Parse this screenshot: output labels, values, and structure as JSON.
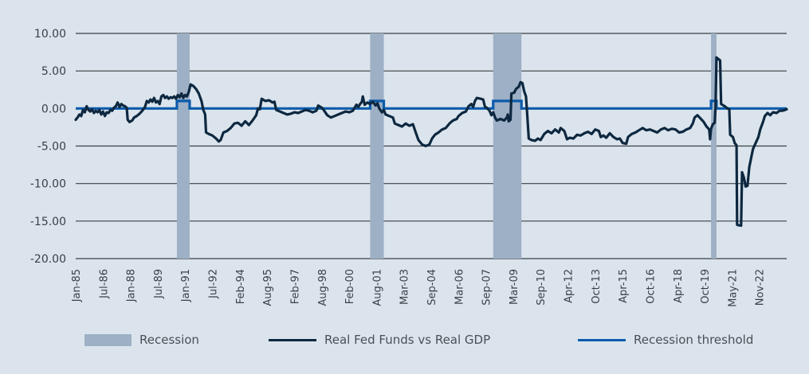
{
  "chart_data": {
    "type": "line",
    "title": "",
    "xlabel": "",
    "ylabel": "",
    "ylim": [
      -20,
      10
    ],
    "yticks": [
      "10.00",
      "5.00",
      "0.00",
      "-5.00",
      "-10.00",
      "-15.00",
      "-20.00"
    ],
    "ytick_values": [
      10,
      5,
      0,
      -5,
      -10,
      -15,
      -20
    ],
    "x_range_years": [
      1985.0,
      2024.0
    ],
    "xtick_labels": [
      "Jan-85",
      "Jul-86",
      "Jan-88",
      "Jul-89",
      "Jan-91",
      "Jul-92",
      "Feb-94",
      "Aug-95",
      "Feb-97",
      "Aug-98",
      "Feb-00",
      "Aug-01",
      "Mar-03",
      "Sep-04",
      "Mar-06",
      "Sep-07",
      "Mar-09",
      "Sep-10",
      "Apr-12",
      "Oct-13",
      "Apr-15",
      "Oct-16",
      "Apr-18",
      "Oct-19",
      "May-21",
      "Nov-22"
    ],
    "grid": "horizontal",
    "legend_position": "bottom",
    "colors": {
      "background": "#dbe4ec",
      "recession": "#9eb0c5",
      "series": "#0d2840",
      "threshold": "#0a5bab",
      "grid": "#3a3f45"
    },
    "recessions": [
      {
        "start": 1990.55,
        "end": 1991.25
      },
      {
        "start": 2001.15,
        "end": 2001.9
      },
      {
        "start": 2007.9,
        "end": 2009.45
      },
      {
        "start": 2019.85,
        "end": 2020.15
      }
    ],
    "series": [
      {
        "name": "Real Fed Funds vs Real GDP",
        "points": [
          [
            1985.0,
            -1.5
          ],
          [
            1985.1,
            -1.2
          ],
          [
            1985.2,
            -0.8
          ],
          [
            1985.3,
            -1.0
          ],
          [
            1985.4,
            -0.2
          ],
          [
            1985.5,
            -0.5
          ],
          [
            1985.6,
            0.3
          ],
          [
            1985.7,
            -0.2
          ],
          [
            1985.8,
            -0.4
          ],
          [
            1985.9,
            -0.1
          ],
          [
            1986.0,
            -0.6
          ],
          [
            1986.1,
            -0.3
          ],
          [
            1986.2,
            -0.5
          ],
          [
            1986.3,
            -0.2
          ],
          [
            1986.4,
            -0.8
          ],
          [
            1986.5,
            -0.4
          ],
          [
            1986.6,
            -1.0
          ],
          [
            1986.7,
            -0.5
          ],
          [
            1986.8,
            -0.6
          ],
          [
            1986.9,
            -0.2
          ],
          [
            1987.0,
            -0.3
          ],
          [
            1987.1,
            0.1
          ],
          [
            1987.2,
            0.3
          ],
          [
            1987.3,
            0.8
          ],
          [
            1987.4,
            0.2
          ],
          [
            1987.5,
            0.6
          ],
          [
            1987.6,
            0.4
          ],
          [
            1987.7,
            0.3
          ],
          [
            1987.8,
            0.1
          ],
          [
            1987.85,
            -1.5
          ],
          [
            1987.95,
            -1.8
          ],
          [
            1988.1,
            -1.6
          ],
          [
            1988.2,
            -1.2
          ],
          [
            1988.35,
            -1.0
          ],
          [
            1988.5,
            -0.7
          ],
          [
            1988.65,
            -0.3
          ],
          [
            1988.8,
            0.2
          ],
          [
            1988.9,
            1.0
          ],
          [
            1989.0,
            0.8
          ],
          [
            1989.1,
            1.2
          ],
          [
            1989.2,
            0.9
          ],
          [
            1989.3,
            1.4
          ],
          [
            1989.4,
            0.8
          ],
          [
            1989.5,
            1.0
          ],
          [
            1989.6,
            0.6
          ],
          [
            1989.7,
            1.6
          ],
          [
            1989.8,
            1.8
          ],
          [
            1989.9,
            1.4
          ],
          [
            1990.0,
            1.6
          ],
          [
            1990.1,
            1.3
          ],
          [
            1990.2,
            1.5
          ],
          [
            1990.3,
            1.4
          ],
          [
            1990.4,
            1.6
          ],
          [
            1990.5,
            1.3
          ],
          [
            1990.6,
            1.8
          ],
          [
            1990.7,
            1.5
          ],
          [
            1990.8,
            2.0
          ],
          [
            1990.9,
            1.4
          ],
          [
            1991.0,
            1.8
          ],
          [
            1991.1,
            1.6
          ],
          [
            1991.2,
            2.2
          ],
          [
            1991.3,
            3.2
          ],
          [
            1991.45,
            3.0
          ],
          [
            1991.6,
            2.6
          ],
          [
            1991.75,
            2.0
          ],
          [
            1991.9,
            1.0
          ],
          [
            1992.0,
            -0.2
          ],
          [
            1992.1,
            -0.8
          ],
          [
            1992.15,
            -3.2
          ],
          [
            1992.3,
            -3.4
          ],
          [
            1992.5,
            -3.6
          ],
          [
            1992.7,
            -4.0
          ],
          [
            1992.85,
            -4.4
          ],
          [
            1992.95,
            -4.2
          ],
          [
            1993.1,
            -3.2
          ],
          [
            1993.3,
            -3.0
          ],
          [
            1993.5,
            -2.6
          ],
          [
            1993.7,
            -2.0
          ],
          [
            1993.9,
            -1.9
          ],
          [
            1994.1,
            -2.3
          ],
          [
            1994.3,
            -1.7
          ],
          [
            1994.5,
            -2.2
          ],
          [
            1994.7,
            -1.6
          ],
          [
            1994.9,
            -0.9
          ],
          [
            1995.0,
            0.0
          ],
          [
            1995.1,
            -0.1
          ],
          [
            1995.2,
            1.3
          ],
          [
            1995.4,
            1.0
          ],
          [
            1995.6,
            1.1
          ],
          [
            1995.8,
            0.8
          ],
          [
            1995.9,
            0.9
          ],
          [
            1996.0,
            -0.2
          ],
          [
            1996.2,
            -0.4
          ],
          [
            1996.4,
            -0.6
          ],
          [
            1996.6,
            -0.8
          ],
          [
            1996.8,
            -0.7
          ],
          [
            1997.0,
            -0.5
          ],
          [
            1997.2,
            -0.6
          ],
          [
            1997.4,
            -0.4
          ],
          [
            1997.6,
            -0.2
          ],
          [
            1997.8,
            -0.3
          ],
          [
            1998.0,
            -0.5
          ],
          [
            1998.2,
            -0.3
          ],
          [
            1998.3,
            0.4
          ],
          [
            1998.5,
            0.1
          ],
          [
            1998.6,
            -0.2
          ],
          [
            1998.8,
            -0.9
          ],
          [
            1999.0,
            -1.2
          ],
          [
            1999.2,
            -1.0
          ],
          [
            1999.4,
            -0.8
          ],
          [
            1999.6,
            -0.6
          ],
          [
            1999.8,
            -0.4
          ],
          [
            2000.0,
            -0.5
          ],
          [
            2000.2,
            -0.3
          ],
          [
            2000.4,
            0.5
          ],
          [
            2000.5,
            0.2
          ],
          [
            2000.6,
            0.6
          ],
          [
            2000.7,
            0.9
          ],
          [
            2000.75,
            1.6
          ],
          [
            2000.85,
            0.5
          ],
          [
            2001.0,
            0.8
          ],
          [
            2001.15,
            0.6
          ],
          [
            2001.3,
            0.9
          ],
          [
            2001.45,
            0.4
          ],
          [
            2001.55,
            0.7
          ],
          [
            2001.65,
            0.0
          ],
          [
            2001.8,
            -0.5
          ],
          [
            2001.9,
            -0.2
          ],
          [
            2002.0,
            -0.8
          ],
          [
            2002.2,
            -1.0
          ],
          [
            2002.4,
            -1.2
          ],
          [
            2002.5,
            -2.0
          ],
          [
            2002.7,
            -2.2
          ],
          [
            2002.9,
            -2.4
          ],
          [
            2003.1,
            -2.0
          ],
          [
            2003.3,
            -2.3
          ],
          [
            2003.5,
            -2.1
          ],
          [
            2003.65,
            -3.2
          ],
          [
            2003.8,
            -4.2
          ],
          [
            2004.0,
            -4.8
          ],
          [
            2004.2,
            -5.0
          ],
          [
            2004.4,
            -4.8
          ],
          [
            2004.55,
            -4.0
          ],
          [
            2004.7,
            -3.5
          ],
          [
            2004.9,
            -3.2
          ],
          [
            2005.1,
            -2.8
          ],
          [
            2005.3,
            -2.6
          ],
          [
            2005.5,
            -2.0
          ],
          [
            2005.7,
            -1.6
          ],
          [
            2005.9,
            -1.4
          ],
          [
            2006.0,
            -1.0
          ],
          [
            2006.2,
            -0.6
          ],
          [
            2006.4,
            -0.4
          ],
          [
            2006.55,
            0.3
          ],
          [
            2006.7,
            0.6
          ],
          [
            2006.8,
            0.2
          ],
          [
            2006.9,
            1.0
          ],
          [
            2007.0,
            1.4
          ],
          [
            2007.2,
            1.3
          ],
          [
            2007.35,
            1.2
          ],
          [
            2007.45,
            0.2
          ],
          [
            2007.55,
            0.1
          ],
          [
            2007.7,
            -0.3
          ],
          [
            2007.8,
            -0.9
          ],
          [
            2007.9,
            -0.5
          ],
          [
            2008.0,
            -1.2
          ],
          [
            2008.1,
            -1.6
          ],
          [
            2008.3,
            -1.4
          ],
          [
            2008.5,
            -1.6
          ],
          [
            2008.65,
            -1.2
          ],
          [
            2008.7,
            -0.8
          ],
          [
            2008.75,
            -1.7
          ],
          [
            2008.85,
            -1.5
          ],
          [
            2008.9,
            2.0
          ],
          [
            2009.05,
            2.1
          ],
          [
            2009.15,
            2.6
          ],
          [
            2009.3,
            2.9
          ],
          [
            2009.4,
            3.5
          ],
          [
            2009.5,
            3.4
          ],
          [
            2009.6,
            2.3
          ],
          [
            2009.7,
            1.6
          ],
          [
            2009.75,
            -0.2
          ],
          [
            2009.85,
            -4.0
          ],
          [
            2010.0,
            -4.2
          ],
          [
            2010.2,
            -4.3
          ],
          [
            2010.35,
            -4.0
          ],
          [
            2010.5,
            -4.2
          ],
          [
            2010.7,
            -3.4
          ],
          [
            2010.9,
            -3.0
          ],
          [
            2011.1,
            -3.3
          ],
          [
            2011.3,
            -2.8
          ],
          [
            2011.5,
            -3.2
          ],
          [
            2011.6,
            -2.6
          ],
          [
            2011.8,
            -3.0
          ],
          [
            2011.95,
            -4.1
          ],
          [
            2012.1,
            -3.9
          ],
          [
            2012.3,
            -4.0
          ],
          [
            2012.5,
            -3.5
          ],
          [
            2012.7,
            -3.6
          ],
          [
            2012.9,
            -3.3
          ],
          [
            2013.1,
            -3.1
          ],
          [
            2013.3,
            -3.4
          ],
          [
            2013.5,
            -2.8
          ],
          [
            2013.7,
            -3.0
          ],
          [
            2013.8,
            -3.8
          ],
          [
            2013.95,
            -3.6
          ],
          [
            2014.1,
            -3.9
          ],
          [
            2014.3,
            -3.3
          ],
          [
            2014.5,
            -3.8
          ],
          [
            2014.7,
            -4.1
          ],
          [
            2014.85,
            -4.0
          ],
          [
            2015.0,
            -4.6
          ],
          [
            2015.2,
            -4.7
          ],
          [
            2015.3,
            -3.8
          ],
          [
            2015.5,
            -3.4
          ],
          [
            2015.7,
            -3.2
          ],
          [
            2015.9,
            -2.9
          ],
          [
            2016.1,
            -2.6
          ],
          [
            2016.3,
            -2.9
          ],
          [
            2016.5,
            -2.8
          ],
          [
            2016.7,
            -3.0
          ],
          [
            2016.9,
            -3.2
          ],
          [
            2017.1,
            -2.8
          ],
          [
            2017.3,
            -2.6
          ],
          [
            2017.5,
            -2.9
          ],
          [
            2017.7,
            -2.7
          ],
          [
            2017.9,
            -2.8
          ],
          [
            2018.1,
            -3.2
          ],
          [
            2018.3,
            -3.1
          ],
          [
            2018.5,
            -2.8
          ],
          [
            2018.7,
            -2.6
          ],
          [
            2018.85,
            -2.0
          ],
          [
            2018.95,
            -1.2
          ],
          [
            2019.1,
            -0.9
          ],
          [
            2019.3,
            -1.4
          ],
          [
            2019.45,
            -1.8
          ],
          [
            2019.6,
            -2.4
          ],
          [
            2019.75,
            -2.8
          ],
          [
            2019.8,
            -4.1
          ],
          [
            2019.85,
            -2.7
          ],
          [
            2019.95,
            -2.1
          ],
          [
            2020.05,
            -1.9
          ],
          [
            2020.1,
            0.3
          ],
          [
            2020.15,
            6.8
          ],
          [
            2020.35,
            6.4
          ],
          [
            2020.4,
            0.6
          ],
          [
            2020.6,
            0.3
          ],
          [
            2020.75,
            0.0
          ],
          [
            2020.85,
            -0.1
          ],
          [
            2020.9,
            -3.5
          ],
          [
            2021.05,
            -3.8
          ],
          [
            2021.15,
            -4.6
          ],
          [
            2021.25,
            -4.9
          ],
          [
            2021.28,
            -15.5
          ],
          [
            2021.5,
            -15.6
          ],
          [
            2021.55,
            -8.5
          ],
          [
            2021.65,
            -9.2
          ],
          [
            2021.75,
            -10.4
          ],
          [
            2021.85,
            -10.3
          ],
          [
            2021.95,
            -7.8
          ],
          [
            2022.05,
            -6.6
          ],
          [
            2022.15,
            -5.4
          ],
          [
            2022.3,
            -4.6
          ],
          [
            2022.45,
            -3.8
          ],
          [
            2022.55,
            -2.8
          ],
          [
            2022.7,
            -1.8
          ],
          [
            2022.8,
            -1.0
          ],
          [
            2022.95,
            -0.6
          ],
          [
            2023.1,
            -0.9
          ],
          [
            2023.25,
            -0.5
          ],
          [
            2023.45,
            -0.6
          ],
          [
            2023.6,
            -0.3
          ],
          [
            2023.75,
            -0.3
          ],
          [
            2023.9,
            -0.2
          ],
          [
            2024.0,
            -0.1
          ]
        ]
      },
      {
        "name": "Recession threshold",
        "baseline": 0,
        "raised_value": 1.0
      }
    ],
    "legend": [
      {
        "label": "Recession",
        "kind": "box"
      },
      {
        "label": "Real Fed Funds vs Real GDP",
        "kind": "line"
      },
      {
        "label": "Recession threshold",
        "kind": "line"
      }
    ]
  }
}
